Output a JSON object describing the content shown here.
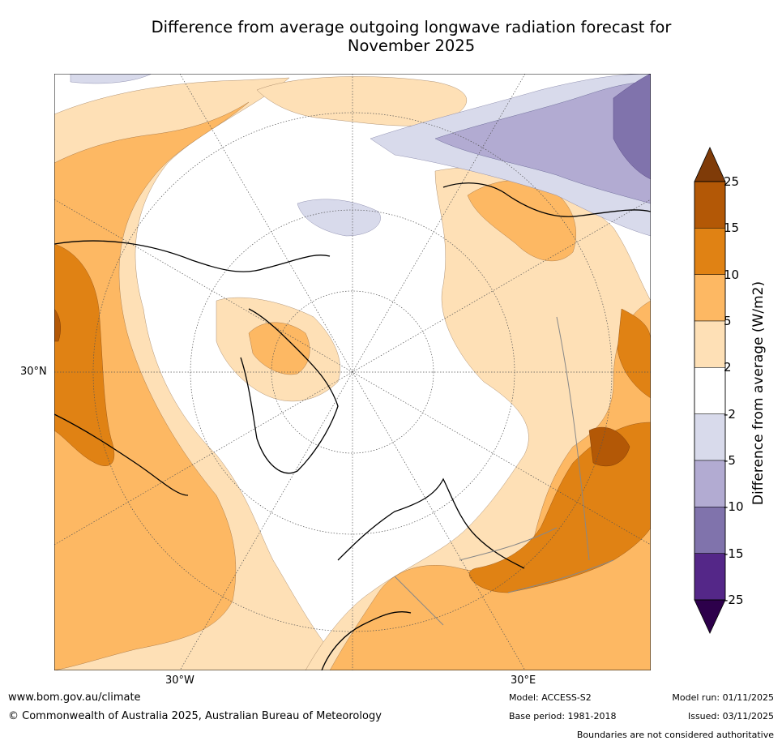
{
  "title": {
    "line1": "Difference from average outgoing longwave radiation forecast for",
    "line2": "November 2025"
  },
  "map": {
    "projection": "polar-stereographic-north",
    "labels": {
      "lat_30n": "30°N",
      "lon_30w": "30°W",
      "lon_30e": "30°E"
    }
  },
  "colorbar": {
    "title": "Difference from average (W/m2)",
    "levels": [
      "25",
      "15",
      "10",
      "5",
      "2",
      "-2",
      "-5",
      "-10",
      "-15",
      "-25"
    ],
    "colors": [
      "#7f3b08",
      "#b35806",
      "#e08214",
      "#fdb863",
      "#fee0b6",
      "#ffffff",
      "#d8daeb",
      "#b2abd2",
      "#8073ac",
      "#542788",
      "#2d004b"
    ]
  },
  "footer": {
    "url": "www.bom.gov.au/climate",
    "copyright": "© Commonwealth of Australia 2025, Australian Bureau of Meteorology",
    "model": "Model: ACCESS-S2",
    "base_period": "Base period: 1981-2018",
    "model_run": "Model run: 01/11/2025",
    "issued": "Issued: 03/11/2025",
    "disclaimer": "Boundaries are not considered authoritative"
  }
}
